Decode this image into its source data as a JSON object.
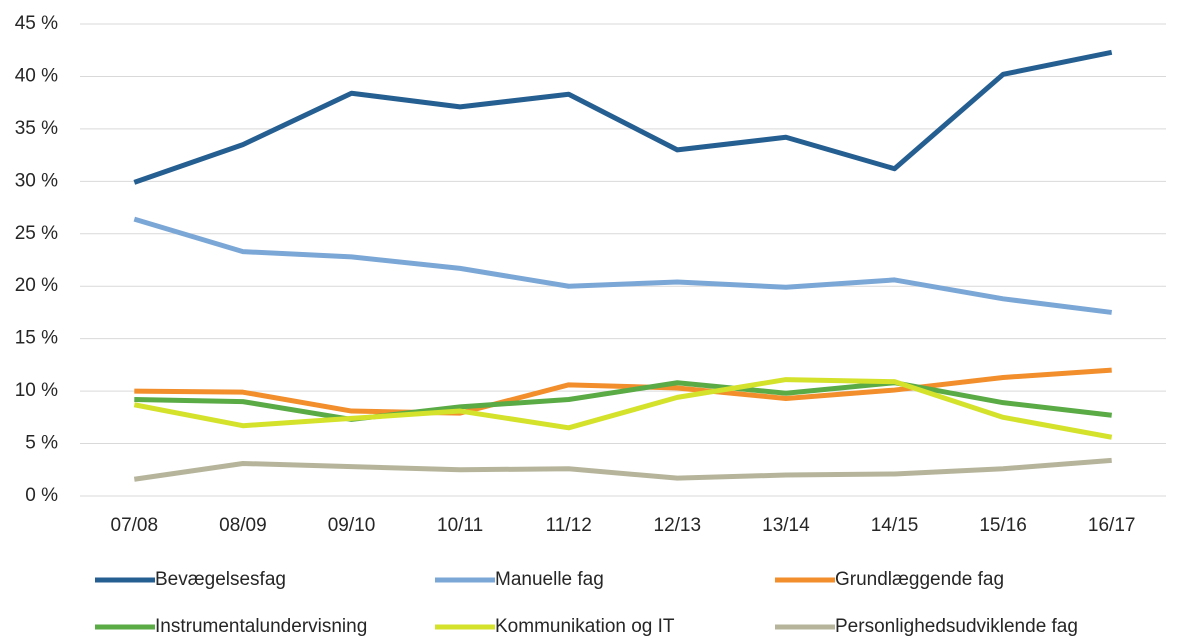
{
  "chart_data": {
    "type": "line",
    "categories": [
      "07/08",
      "08/09",
      "09/10",
      "10/11",
      "11/12",
      "12/13",
      "13/14",
      "14/15",
      "15/16",
      "16/17"
    ],
    "series": [
      {
        "name": "Bevægelsesfag",
        "color": "#255e91",
        "values": [
          29.9,
          33.5,
          38.4,
          37.1,
          38.3,
          33.0,
          34.2,
          31.2,
          40.2,
          42.3
        ]
      },
      {
        "name": "Manuelle fag",
        "color": "#7ba7d7",
        "values": [
          26.4,
          23.3,
          22.8,
          21.7,
          20.0,
          20.4,
          19.9,
          20.6,
          18.8,
          17.5
        ]
      },
      {
        "name": "Grundlæggende fag",
        "color": "#f28e2b",
        "values": [
          10.0,
          9.9,
          8.1,
          7.9,
          10.6,
          10.3,
          9.3,
          10.1,
          11.3,
          12.0
        ]
      },
      {
        "name": "Instrumentalundervisning",
        "color": "#5aaa46",
        "values": [
          9.2,
          9.0,
          7.3,
          8.5,
          9.2,
          10.8,
          9.8,
          10.8,
          8.9,
          7.7
        ]
      },
      {
        "name": "Kommunikation og IT",
        "color": "#d4e22c",
        "values": [
          8.7,
          6.7,
          7.4,
          8.1,
          6.5,
          9.4,
          11.1,
          10.9,
          7.5,
          5.6
        ]
      },
      {
        "name": "Personlighedsudviklende fag",
        "color": "#b6b59b",
        "values": [
          1.6,
          3.1,
          2.8,
          2.5,
          2.6,
          1.7,
          2.0,
          2.1,
          2.6,
          3.4
        ]
      }
    ],
    "ylim": [
      0,
      45
    ],
    "yticks": [
      {
        "value": 0,
        "label": "0 %"
      },
      {
        "value": 5,
        "label": "5 %"
      },
      {
        "value": 10,
        "label": "10 %"
      },
      {
        "value": 15,
        "label": "15 %"
      },
      {
        "value": 20,
        "label": "20 %"
      },
      {
        "value": 25,
        "label": "25 %"
      },
      {
        "value": 30,
        "label": "30 %"
      },
      {
        "value": 35,
        "label": "35 %"
      },
      {
        "value": 40,
        "label": "40 %"
      },
      {
        "value": 45,
        "label": "45 %"
      }
    ],
    "grid": true,
    "legend": "bottom"
  }
}
